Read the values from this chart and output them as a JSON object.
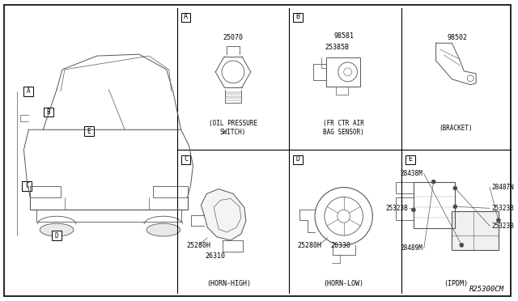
{
  "bg_color": "#ffffff",
  "border_color": "#000000",
  "line_color": "#555555",
  "text_color": "#000000",
  "fig_width": 6.4,
  "fig_height": 3.72,
  "diagram_ref": "R25300CM",
  "section_labels": [
    [
      "A",
      224,
      12
    ],
    [
      "B",
      364,
      12
    ],
    [
      "C",
      224,
      190
    ],
    [
      "D",
      364,
      190
    ],
    [
      "E",
      504,
      190
    ]
  ],
  "part_captions": {
    "A": "(OIL PRESSURE\nSWITCH)",
    "B": "(FR CTR AIR\nBAG SENSOR)",
    "bracket": "(BRACKET)",
    "C": "(HORN-HIGH)",
    "D": "(HORN-LOW)",
    "E": "(IPDM)"
  }
}
